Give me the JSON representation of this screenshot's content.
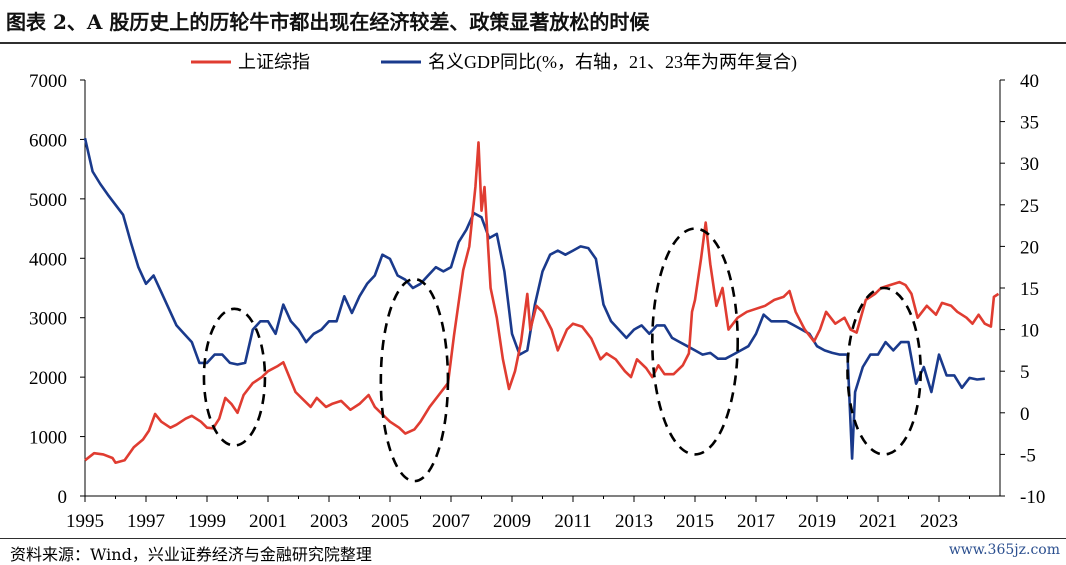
{
  "title": "图表 2、A 股历史上的历轮牛市都出现在经济较差、政策显著放松的时候",
  "source": "资料来源：Wind，兴业证券经济与金融研究院整理",
  "watermark": "www.365jz.com",
  "colors": {
    "sse": "#e03c31",
    "gdp": "#1a3a8c",
    "ellipse": "#000000"
  },
  "chart_data": {
    "type": "line",
    "x_ticks": [
      "1995",
      "1997",
      "1999",
      "2001",
      "2003",
      "2005",
      "2007",
      "2009",
      "2011",
      "2013",
      "2015",
      "2017",
      "2019",
      "2021",
      "2023"
    ],
    "y_left": {
      "min": 0,
      "max": 7000,
      "ticks": [
        "0",
        "1000",
        "2000",
        "3000",
        "4000",
        "5000",
        "6000",
        "7000"
      ]
    },
    "y_right": {
      "min": -10,
      "max": 40,
      "ticks": [
        "-10",
        "-5",
        "0",
        "5",
        "10",
        "15",
        "20",
        "25",
        "30",
        "35",
        "40"
      ]
    },
    "legend_position": "top",
    "series": [
      {
        "name": "上证综指",
        "axis": "left",
        "points": [
          [
            1995.0,
            600
          ],
          [
            1995.3,
            720
          ],
          [
            1995.6,
            700
          ],
          [
            1995.9,
            640
          ],
          [
            1996.0,
            560
          ],
          [
            1996.3,
            600
          ],
          [
            1996.6,
            820
          ],
          [
            1996.9,
            950
          ],
          [
            1997.1,
            1100
          ],
          [
            1997.3,
            1380
          ],
          [
            1997.5,
            1250
          ],
          [
            1997.8,
            1150
          ],
          [
            1998.0,
            1200
          ],
          [
            1998.3,
            1300
          ],
          [
            1998.5,
            1350
          ],
          [
            1998.8,
            1250
          ],
          [
            1999.0,
            1150
          ],
          [
            1999.2,
            1140
          ],
          [
            1999.4,
            1300
          ],
          [
            1999.6,
            1650
          ],
          [
            1999.8,
            1550
          ],
          [
            2000.0,
            1400
          ],
          [
            2000.2,
            1700
          ],
          [
            2000.5,
            1900
          ],
          [
            2000.8,
            2000
          ],
          [
            2001.0,
            2100
          ],
          [
            2001.3,
            2180
          ],
          [
            2001.5,
            2250
          ],
          [
            2001.7,
            2000
          ],
          [
            2001.9,
            1750
          ],
          [
            2002.1,
            1650
          ],
          [
            2002.4,
            1500
          ],
          [
            2002.6,
            1650
          ],
          [
            2002.9,
            1500
          ],
          [
            2003.1,
            1550
          ],
          [
            2003.4,
            1600
          ],
          [
            2003.7,
            1450
          ],
          [
            2004.0,
            1550
          ],
          [
            2004.3,
            1700
          ],
          [
            2004.5,
            1500
          ],
          [
            2004.8,
            1350
          ],
          [
            2005.0,
            1250
          ],
          [
            2005.3,
            1150
          ],
          [
            2005.5,
            1050
          ],
          [
            2005.8,
            1120
          ],
          [
            2006.0,
            1250
          ],
          [
            2006.3,
            1500
          ],
          [
            2006.6,
            1700
          ],
          [
            2006.9,
            1900
          ],
          [
            2007.1,
            2700
          ],
          [
            2007.4,
            3800
          ],
          [
            2007.6,
            4200
          ],
          [
            2007.8,
            5200
          ],
          [
            2007.9,
            5950
          ],
          [
            2008.0,
            4800
          ],
          [
            2008.1,
            5200
          ],
          [
            2008.3,
            3500
          ],
          [
            2008.5,
            3000
          ],
          [
            2008.7,
            2300
          ],
          [
            2008.9,
            1800
          ],
          [
            2009.1,
            2100
          ],
          [
            2009.3,
            2600
          ],
          [
            2009.5,
            3400
          ],
          [
            2009.6,
            2800
          ],
          [
            2009.8,
            3200
          ],
          [
            2010.0,
            3100
          ],
          [
            2010.3,
            2800
          ],
          [
            2010.5,
            2450
          ],
          [
            2010.8,
            2800
          ],
          [
            2011.0,
            2900
          ],
          [
            2011.3,
            2850
          ],
          [
            2011.6,
            2650
          ],
          [
            2011.9,
            2300
          ],
          [
            2012.1,
            2400
          ],
          [
            2012.4,
            2300
          ],
          [
            2012.7,
            2100
          ],
          [
            2012.9,
            2000
          ],
          [
            2013.1,
            2300
          ],
          [
            2013.4,
            2150
          ],
          [
            2013.6,
            2000
          ],
          [
            2013.8,
            2200
          ],
          [
            2014.0,
            2050
          ],
          [
            2014.3,
            2050
          ],
          [
            2014.6,
            2200
          ],
          [
            2014.8,
            2400
          ],
          [
            2014.9,
            3100
          ],
          [
            2015.0,
            3300
          ],
          [
            2015.2,
            4000
          ],
          [
            2015.35,
            4600
          ],
          [
            2015.5,
            3900
          ],
          [
            2015.7,
            3200
          ],
          [
            2015.9,
            3500
          ],
          [
            2016.1,
            2800
          ],
          [
            2016.4,
            3000
          ],
          [
            2016.7,
            3100
          ],
          [
            2017.0,
            3150
          ],
          [
            2017.3,
            3200
          ],
          [
            2017.6,
            3300
          ],
          [
            2017.9,
            3350
          ],
          [
            2018.1,
            3450
          ],
          [
            2018.3,
            3100
          ],
          [
            2018.6,
            2800
          ],
          [
            2018.9,
            2600
          ],
          [
            2019.1,
            2800
          ],
          [
            2019.3,
            3100
          ],
          [
            2019.6,
            2900
          ],
          [
            2019.9,
            3000
          ],
          [
            2020.1,
            2800
          ],
          [
            2020.3,
            2750
          ],
          [
            2020.6,
            3300
          ],
          [
            2020.9,
            3400
          ],
          [
            2021.1,
            3500
          ],
          [
            2021.4,
            3550
          ],
          [
            2021.7,
            3600
          ],
          [
            2021.9,
            3550
          ],
          [
            2022.1,
            3400
          ],
          [
            2022.3,
            3000
          ],
          [
            2022.6,
            3200
          ],
          [
            2022.9,
            3050
          ],
          [
            2023.1,
            3250
          ],
          [
            2023.4,
            3200
          ],
          [
            2023.6,
            3100
          ],
          [
            2023.9,
            3000
          ],
          [
            2024.1,
            2900
          ],
          [
            2024.3,
            3050
          ],
          [
            2024.5,
            2900
          ],
          [
            2024.7,
            2850
          ],
          [
            2024.8,
            3350
          ],
          [
            2024.95,
            3400
          ]
        ]
      },
      {
        "name": "名义GDP同比(%，右轴，21、23年为两年复合)",
        "axis": "right",
        "points": [
          [
            1995.0,
            33
          ],
          [
            1995.25,
            29
          ],
          [
            1995.5,
            27.5
          ],
          [
            1995.75,
            26.2
          ],
          [
            1996.0,
            25
          ],
          [
            1996.25,
            23.8
          ],
          [
            1996.5,
            20.5
          ],
          [
            1996.75,
            17.5
          ],
          [
            1997.0,
            15.5
          ],
          [
            1997.25,
            16.5
          ],
          [
            1997.5,
            14.5
          ],
          [
            1997.75,
            12.5
          ],
          [
            1998.0,
            10.5
          ],
          [
            1998.25,
            9.5
          ],
          [
            1998.5,
            8.5
          ],
          [
            1998.75,
            6.0
          ],
          [
            1999.0,
            6.0
          ],
          [
            1999.25,
            7.0
          ],
          [
            1999.5,
            7.0
          ],
          [
            1999.75,
            6.0
          ],
          [
            2000.0,
            5.8
          ],
          [
            2000.25,
            6.0
          ],
          [
            2000.5,
            10.0
          ],
          [
            2000.75,
            11.0
          ],
          [
            2001.0,
            11.0
          ],
          [
            2001.25,
            9.5
          ],
          [
            2001.5,
            13.0
          ],
          [
            2001.75,
            11.0
          ],
          [
            2002.0,
            10.0
          ],
          [
            2002.25,
            8.5
          ],
          [
            2002.5,
            9.5
          ],
          [
            2002.75,
            10.0
          ],
          [
            2003.0,
            11.0
          ],
          [
            2003.25,
            11.0
          ],
          [
            2003.5,
            14.0
          ],
          [
            2003.75,
            12.0
          ],
          [
            2004.0,
            14.0
          ],
          [
            2004.25,
            15.5
          ],
          [
            2004.5,
            16.5
          ],
          [
            2004.75,
            19.0
          ],
          [
            2005.0,
            18.5
          ],
          [
            2005.25,
            16.5
          ],
          [
            2005.5,
            16.0
          ],
          [
            2005.75,
            15.0
          ],
          [
            2006.0,
            15.5
          ],
          [
            2006.25,
            16.5
          ],
          [
            2006.5,
            17.5
          ],
          [
            2006.75,
            17.0
          ],
          [
            2007.0,
            17.5
          ],
          [
            2007.25,
            20.5
          ],
          [
            2007.5,
            22.0
          ],
          [
            2007.75,
            24.0
          ],
          [
            2008.0,
            23.5
          ],
          [
            2008.25,
            21.0
          ],
          [
            2008.5,
            21.5
          ],
          [
            2008.75,
            17.0
          ],
          [
            2009.0,
            9.5
          ],
          [
            2009.25,
            7.0
          ],
          [
            2009.5,
            7.5
          ],
          [
            2009.75,
            13.0
          ],
          [
            2010.0,
            17.0
          ],
          [
            2010.25,
            19.0
          ],
          [
            2010.5,
            19.5
          ],
          [
            2010.75,
            19.0
          ],
          [
            2011.0,
            19.5
          ],
          [
            2011.25,
            20.0
          ],
          [
            2011.5,
            19.8
          ],
          [
            2011.75,
            18.5
          ],
          [
            2012.0,
            13.0
          ],
          [
            2012.25,
            11.0
          ],
          [
            2012.5,
            10.0
          ],
          [
            2012.75,
            9.0
          ],
          [
            2013.0,
            10.0
          ],
          [
            2013.25,
            10.5
          ],
          [
            2013.5,
            9.5
          ],
          [
            2013.75,
            10.5
          ],
          [
            2014.0,
            10.5
          ],
          [
            2014.25,
            9.0
          ],
          [
            2014.5,
            8.5
          ],
          [
            2014.75,
            8.0
          ],
          [
            2015.0,
            7.5
          ],
          [
            2015.25,
            7.0
          ],
          [
            2015.5,
            7.2
          ],
          [
            2015.75,
            6.5
          ],
          [
            2016.0,
            6.5
          ],
          [
            2016.25,
            7.0
          ],
          [
            2016.5,
            7.5
          ],
          [
            2016.75,
            8.0
          ],
          [
            2017.0,
            9.5
          ],
          [
            2017.25,
            11.8
          ],
          [
            2017.5,
            11.0
          ],
          [
            2017.75,
            11.0
          ],
          [
            2018.0,
            11.0
          ],
          [
            2018.25,
            10.5
          ],
          [
            2018.5,
            10.0
          ],
          [
            2018.75,
            9.5
          ],
          [
            2019.0,
            8.0
          ],
          [
            2019.25,
            7.5
          ],
          [
            2019.5,
            7.2
          ],
          [
            2019.75,
            7.0
          ],
          [
            2020.0,
            7.0
          ],
          [
            2020.15,
            -5.5
          ],
          [
            2020.25,
            2.5
          ],
          [
            2020.5,
            5.5
          ],
          [
            2020.75,
            7.0
          ],
          [
            2021.0,
            7.0
          ],
          [
            2021.25,
            8.5
          ],
          [
            2021.5,
            7.5
          ],
          [
            2021.75,
            8.5
          ],
          [
            2022.0,
            8.5
          ],
          [
            2022.25,
            3.5
          ],
          [
            2022.5,
            5.5
          ],
          [
            2022.75,
            2.5
          ],
          [
            2023.0,
            7.0
          ],
          [
            2023.25,
            4.5
          ],
          [
            2023.5,
            4.5
          ],
          [
            2023.75,
            3.0
          ],
          [
            2024.0,
            4.2
          ],
          [
            2024.25,
            4.0
          ],
          [
            2024.5,
            4.1
          ]
        ]
      }
    ],
    "highlights": [
      {
        "cx": 1999.9,
        "cy": 2000,
        "rx": 1.0,
        "ry": 1150
      },
      {
        "cx": 2005.8,
        "cy": 1950,
        "rx": 1.1,
        "ry": 1700
      },
      {
        "cx": 2015.0,
        "cy": 2600,
        "rx": 1.4,
        "ry": 1900
      },
      {
        "cx": 2021.2,
        "cy": 2100,
        "rx": 1.2,
        "ry": 1400
      }
    ]
  }
}
